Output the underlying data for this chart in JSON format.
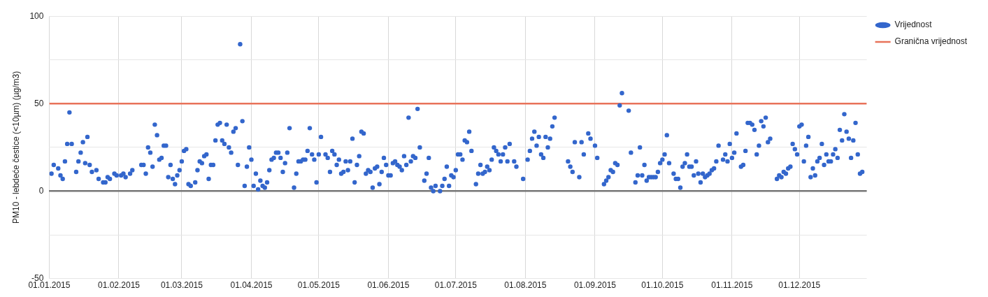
{
  "chart_data": {
    "type": "scatter",
    "ylabel": "PM10 - lebdeće čestice (<10µm) (µg/m3)",
    "xlim": [
      "2015-01-01",
      "2015-12-31"
    ],
    "xticks": [
      {
        "value": "2015-01-01",
        "label": "01.01.2015"
      },
      {
        "value": "2015-02-01",
        "label": "01.02.2015"
      },
      {
        "value": "2015-03-01",
        "label": "01.03.2015"
      },
      {
        "value": "2015-04-01",
        "label": "01.04.2015"
      },
      {
        "value": "2015-05-01",
        "label": "01.05.2015"
      },
      {
        "value": "2015-06-01",
        "label": "01.06.2015"
      },
      {
        "value": "2015-07-01",
        "label": "01.07.2015"
      },
      {
        "value": "2015-08-01",
        "label": "01.08.2015"
      },
      {
        "value": "2015-09-01",
        "label": "01.09.2015"
      },
      {
        "value": "2015-10-01",
        "label": "01.10.2015"
      },
      {
        "value": "2015-11-01",
        "label": "01.11.2015"
      },
      {
        "value": "2015-12-01",
        "label": "01.12.2015"
      }
    ],
    "ylim": [
      -50,
      100
    ],
    "yticks": [
      -50,
      {
        "value": -25,
        "label": null
      },
      0,
      {
        "value": 25,
        "label": null
      },
      50,
      {
        "value": 75,
        "label": null
      },
      100
    ],
    "grid": true,
    "legend": "top right",
    "marker": "circle",
    "ref_lines": [
      {
        "axis": "y",
        "value": 50,
        "label": "Granična vrijednost",
        "color": "#e8735a"
      }
    ],
    "series": [
      {
        "name": "Vrijednost",
        "color": "#3366cc",
        "x": [
          "2015-01-02",
          "2015-01-03",
          "2015-01-05",
          "2015-01-06",
          "2015-01-07",
          "2015-01-08",
          "2015-01-09",
          "2015-01-10",
          "2015-01-11",
          "2015-01-13",
          "2015-01-14",
          "2015-01-15",
          "2015-01-16",
          "2015-01-17",
          "2015-01-18",
          "2015-01-19",
          "2015-01-20",
          "2015-01-22",
          "2015-01-23",
          "2015-01-25",
          "2015-01-26",
          "2015-01-27",
          "2015-01-28",
          "2015-01-30",
          "2015-01-31",
          "2015-02-02",
          "2015-02-03",
          "2015-02-04",
          "2015-02-06",
          "2015-02-07",
          "2015-02-11",
          "2015-02-12",
          "2015-02-13",
          "2015-02-14",
          "2015-02-15",
          "2015-02-16",
          "2015-02-17",
          "2015-02-18",
          "2015-02-19",
          "2015-02-20",
          "2015-02-21",
          "2015-02-22",
          "2015-02-23",
          "2015-02-24",
          "2015-02-25",
          "2015-02-26",
          "2015-02-27",
          "2015-02-28",
          "2015-03-01",
          "2015-03-02",
          "2015-03-03",
          "2015-03-04",
          "2015-03-05",
          "2015-03-07",
          "2015-03-08",
          "2015-03-09",
          "2015-03-10",
          "2015-03-11",
          "2015-03-12",
          "2015-03-13",
          "2015-03-14",
          "2015-03-15",
          "2015-03-16",
          "2015-03-17",
          "2015-03-18",
          "2015-03-19",
          "2015-03-20",
          "2015-03-21",
          "2015-03-22",
          "2015-03-23",
          "2015-03-24",
          "2015-03-25",
          "2015-03-26",
          "2015-03-27",
          "2015-03-28",
          "2015-03-29",
          "2015-03-30",
          "2015-03-31",
          "2015-04-01",
          "2015-04-02",
          "2015-04-03",
          "2015-04-04",
          "2015-04-05",
          "2015-04-06",
          "2015-04-07",
          "2015-04-08",
          "2015-04-09",
          "2015-04-10",
          "2015-04-11",
          "2015-04-12",
          "2015-04-13",
          "2015-04-14",
          "2015-04-15",
          "2015-04-16",
          "2015-04-17",
          "2015-04-18",
          "2015-04-20",
          "2015-04-21",
          "2015-04-22",
          "2015-04-23",
          "2015-04-24",
          "2015-04-25",
          "2015-04-26",
          "2015-04-27",
          "2015-04-28",
          "2015-04-29",
          "2015-04-30",
          "2015-05-01",
          "2015-05-02",
          "2015-05-04",
          "2015-05-05",
          "2015-05-06",
          "2015-05-07",
          "2015-05-08",
          "2015-05-09",
          "2015-05-10",
          "2015-05-11",
          "2015-05-12",
          "2015-05-13",
          "2015-05-14",
          "2015-05-15",
          "2015-05-16",
          "2015-05-17",
          "2015-05-18",
          "2015-05-19",
          "2015-05-20",
          "2015-05-21",
          "2015-05-22",
          "2015-05-23",
          "2015-05-24",
          "2015-05-25",
          "2015-05-26",
          "2015-05-27",
          "2015-05-28",
          "2015-05-29",
          "2015-05-30",
          "2015-05-31",
          "2015-06-01",
          "2015-06-02",
          "2015-06-03",
          "2015-06-04",
          "2015-06-05",
          "2015-06-06",
          "2015-06-07",
          "2015-06-08",
          "2015-06-09",
          "2015-06-10",
          "2015-06-11",
          "2015-06-12",
          "2015-06-13",
          "2015-06-14",
          "2015-06-15",
          "2015-06-17",
          "2015-06-18",
          "2015-06-19",
          "2015-06-20",
          "2015-06-21",
          "2015-06-22",
          "2015-06-24",
          "2015-06-25",
          "2015-06-26",
          "2015-06-27",
          "2015-06-28",
          "2015-06-29",
          "2015-06-30",
          "2015-07-01",
          "2015-07-02",
          "2015-07-03",
          "2015-07-04",
          "2015-07-05",
          "2015-07-06",
          "2015-07-07",
          "2015-07-08",
          "2015-07-10",
          "2015-07-11",
          "2015-07-12",
          "2015-07-13",
          "2015-07-14",
          "2015-07-15",
          "2015-07-16",
          "2015-07-17",
          "2015-07-18",
          "2015-07-19",
          "2015-07-20",
          "2015-07-21",
          "2015-07-22",
          "2015-07-23",
          "2015-07-24",
          "2015-07-25",
          "2015-07-27",
          "2015-07-28",
          "2015-07-31",
          "2015-08-02",
          "2015-08-03",
          "2015-08-04",
          "2015-08-05",
          "2015-08-06",
          "2015-08-07",
          "2015-08-08",
          "2015-08-09",
          "2015-08-10",
          "2015-08-11",
          "2015-08-12",
          "2015-08-13",
          "2015-08-14",
          "2015-08-20",
          "2015-08-21",
          "2015-08-22",
          "2015-08-23",
          "2015-08-25",
          "2015-08-26",
          "2015-08-27",
          "2015-08-29",
          "2015-08-30",
          "2015-09-01",
          "2015-09-02",
          "2015-09-05",
          "2015-09-06",
          "2015-09-07",
          "2015-09-08",
          "2015-09-09",
          "2015-09-10",
          "2015-09-11",
          "2015-09-12",
          "2015-09-13",
          "2015-09-16",
          "2015-09-17",
          "2015-09-19",
          "2015-09-20",
          "2015-09-21",
          "2015-09-22",
          "2015-09-23",
          "2015-09-24",
          "2015-09-25",
          "2015-09-26",
          "2015-09-27",
          "2015-09-28",
          "2015-09-29",
          "2015-09-30",
          "2015-10-01",
          "2015-10-02",
          "2015-10-03",
          "2015-10-04",
          "2015-10-06",
          "2015-10-07",
          "2015-10-08",
          "2015-10-09",
          "2015-10-10",
          "2015-10-11",
          "2015-10-12",
          "2015-10-13",
          "2015-10-14",
          "2015-10-15",
          "2015-10-16",
          "2015-10-17",
          "2015-10-18",
          "2015-10-19",
          "2015-10-20",
          "2015-10-21",
          "2015-10-22",
          "2015-10-23",
          "2015-10-24",
          "2015-10-25",
          "2015-10-26",
          "2015-10-28",
          "2015-10-29",
          "2015-10-30",
          "2015-10-31",
          "2015-11-01",
          "2015-11-02",
          "2015-11-03",
          "2015-11-05",
          "2015-11-06",
          "2015-11-07",
          "2015-11-08",
          "2015-11-09",
          "2015-11-10",
          "2015-11-11",
          "2015-11-12",
          "2015-11-13",
          "2015-11-14",
          "2015-11-15",
          "2015-11-16",
          "2015-11-17",
          "2015-11-18",
          "2015-11-21",
          "2015-11-22",
          "2015-11-23",
          "2015-11-24",
          "2015-11-25",
          "2015-11-26",
          "2015-11-27",
          "2015-11-28",
          "2015-11-29",
          "2015-11-30",
          "2015-12-01",
          "2015-12-02",
          "2015-12-03",
          "2015-12-04",
          "2015-12-05",
          "2015-12-06",
          "2015-12-07",
          "2015-12-08",
          "2015-12-09",
          "2015-12-10",
          "2015-12-11",
          "2015-12-12",
          "2015-12-13",
          "2015-12-14",
          "2015-12-15",
          "2015-12-16",
          "2015-12-17",
          "2015-12-18",
          "2015-12-19",
          "2015-12-20",
          "2015-12-21",
          "2015-12-22",
          "2015-12-23",
          "2015-12-24",
          "2015-12-25",
          "2015-12-26",
          "2015-12-27",
          "2015-12-28",
          "2015-12-29"
        ],
        "values": [
          10,
          15,
          13,
          9,
          7,
          17,
          27,
          45,
          27,
          11,
          17,
          22,
          28,
          16,
          31,
          15,
          11,
          12,
          7,
          5,
          5,
          8,
          7,
          10,
          9,
          9,
          10,
          8,
          10,
          12,
          15,
          15,
          10,
          25,
          22,
          14,
          38,
          32,
          18,
          19,
          26,
          26,
          8,
          15,
          7,
          4,
          9,
          12,
          17,
          23,
          24,
          4,
          3,
          5,
          12,
          17,
          16,
          20,
          21,
          7,
          15,
          15,
          29,
          38,
          39,
          29,
          27,
          38,
          25,
          22,
          34,
          36,
          15,
          84,
          40,
          3,
          14,
          25,
          18,
          3,
          10,
          1,
          6,
          3,
          2,
          5,
          12,
          18,
          19,
          22,
          22,
          19,
          11,
          16,
          22,
          36,
          2,
          10,
          17,
          17,
          18,
          18,
          23,
          36,
          21,
          18,
          5,
          21,
          31,
          21,
          19,
          11,
          23,
          21,
          15,
          18,
          10,
          11,
          17,
          12,
          17,
          30,
          5,
          15,
          20,
          34,
          33,
          10,
          12,
          11,
          2,
          13,
          14,
          4,
          11,
          19,
          15,
          9,
          9,
          16,
          17,
          15,
          14,
          12,
          20,
          15,
          42,
          17,
          20,
          19,
          47,
          25,
          6,
          10,
          19,
          2,
          0,
          3,
          0,
          3,
          7,
          14,
          3,
          9,
          8,
          12,
          21,
          21,
          18,
          29,
          28,
          34,
          23,
          4,
          10,
          15,
          10,
          11,
          14,
          12,
          18,
          25,
          23,
          21,
          17,
          21,
          25,
          17,
          27,
          17,
          14,
          7,
          18,
          23,
          30,
          34,
          26,
          31,
          21,
          19,
          31,
          25,
          30,
          37,
          42,
          17,
          14,
          11,
          28,
          8,
          28,
          21,
          33,
          30,
          26,
          19,
          4,
          6,
          8,
          12,
          11,
          16,
          15,
          49,
          56,
          46,
          22,
          5,
          9,
          25,
          9,
          15,
          6,
          8,
          8,
          8,
          8,
          11,
          16,
          18,
          21,
          32,
          16,
          10,
          7,
          7,
          2,
          14,
          16,
          21,
          14,
          14,
          9,
          17,
          10,
          5,
          10,
          8,
          9,
          10,
          12,
          13,
          17,
          26,
          18,
          21,
          17,
          27,
          19,
          22,
          33,
          14,
          15,
          23,
          39,
          39,
          38,
          35,
          21,
          26,
          40,
          37,
          42,
          28,
          30,
          7,
          9,
          8,
          11,
          10,
          13,
          14,
          27,
          24,
          21,
          37,
          38,
          17,
          26,
          31,
          8,
          13,
          9,
          17,
          19,
          27,
          15,
          21,
          17,
          17,
          21,
          24,
          19,
          35,
          29,
          44,
          34,
          30,
          19,
          29,
          39,
          21,
          10,
          11
        ]
      }
    ]
  }
}
